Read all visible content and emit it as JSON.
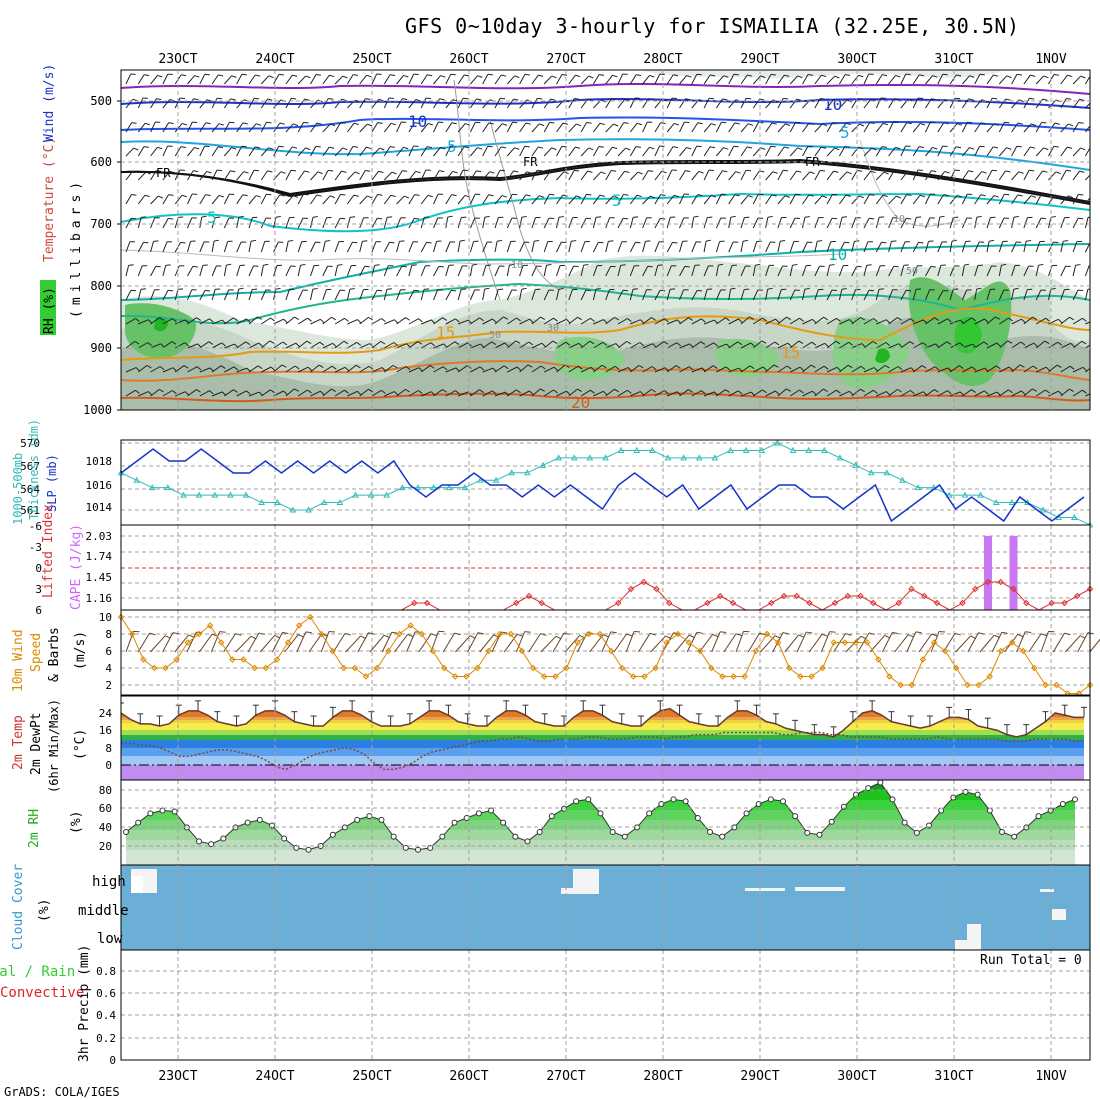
{
  "title": "GFS 0~10day 3-hourly for ISMAILIA (32.25E, 30.5N)",
  "footer": "GrADS: COLA/IGES",
  "dates": [
    "23OCT",
    "24OCT",
    "25OCT",
    "26OCT",
    "27OCT",
    "28OCT",
    "29OCT",
    "30OCT",
    "31OCT",
    "1NOV"
  ],
  "colors": {
    "wind_cmp": "#0000cc",
    "temp": "#cc3333",
    "rh": "#33cc33",
    "cape": "#cc66ff",
    "thickness": "#33bbbb",
    "slp": "#1133cc",
    "wind10": "#dd8800",
    "cloud_bg": "#6baed6",
    "cloud_fill": "#f4f4f4",
    "rain": "#33cc33",
    "conv": "#dd2222"
  },
  "panels": {
    "upper": {
      "labels": {
        "rh": "RH (%)",
        "temperature": "Temperature (°C)",
        "wind": "Wind (m/s)",
        "pressure": "(millibars)"
      },
      "yticks": [
        "500",
        "600",
        "700",
        "800",
        "900",
        "1000"
      ],
      "contour_labels": {
        "fr": "FR",
        "ten": "10",
        "five": "5",
        "fifteen": "15",
        "twenty": "20",
        "thirty": "30",
        "fifty": "50"
      }
    },
    "thickness_slp": {
      "label1": "1000-500mb",
      "label2": "Thickness (dm)",
      "label3": "SLP (mb)",
      "thickness_ticks": [
        "570",
        "567",
        "564",
        "561"
      ],
      "slp_ticks": [
        "1018",
        "1016",
        "1014"
      ]
    },
    "cape_li": {
      "label_li": "Lifted Index",
      "label_cape": "CAPE (J/kg)",
      "li_ticks": [
        "-6",
        "-3",
        "0",
        "3",
        "6"
      ],
      "cape_ticks": [
        "2.03",
        "1.74",
        "1.45",
        "1.16"
      ]
    },
    "wind10": {
      "label1": "10m Wind",
      "label2": "Speed",
      "label3": "& Barbs",
      "units": "(m/s)",
      "ticks": [
        "10",
        "8",
        "6",
        "4",
        "2"
      ]
    },
    "temp2m": {
      "label1": "2m Temp",
      "label2": "2m DewPt",
      "label3": "(6hr Min/Max)",
      "units": "(°C)",
      "ticks": [
        "24",
        "16",
        "8",
        "0"
      ],
      "ticks_minor": [
        "20",
        "12",
        "4"
      ]
    },
    "rh2m": {
      "label": "2m RH",
      "units": "(%)",
      "ticks": [
        "80",
        "60",
        "40",
        "20"
      ]
    },
    "cloud": {
      "label": "Cloud Cover",
      "units": "(%)",
      "levels": [
        "high",
        "middle",
        "low"
      ]
    },
    "precip": {
      "label1": "Total / Rain",
      "label2": "Convective",
      "label3": "3hr Precip (mm)",
      "ticks": [
        "0.8",
        "0.6",
        "0.4",
        "0.2",
        "0"
      ],
      "run_total": "Run Total = 0"
    }
  },
  "chart_data": [
    {
      "type": "line",
      "name": "temp2m",
      "x_unit": "3-hourly steps from 23OCT 00Z (approx. 22 OCT 12Z start)",
      "series": [
        {
          "name": "2m Temp",
          "values": [
            24,
            21,
            19,
            19,
            18,
            19,
            23,
            25,
            25,
            23,
            20,
            19,
            18,
            19,
            23,
            25,
            25,
            23,
            20,
            19,
            18,
            18,
            22,
            25,
            25,
            23,
            20,
            18,
            18,
            18,
            19,
            22,
            25,
            25,
            23,
            20,
            19,
            18,
            18,
            22,
            25,
            25,
            23,
            20,
            19,
            18,
            18,
            22,
            25,
            25,
            23,
            20,
            19,
            18,
            18,
            22,
            25,
            26,
            23,
            20,
            19,
            18,
            18,
            22,
            25,
            25,
            23,
            20,
            19,
            17,
            16,
            15,
            14,
            14,
            13,
            16,
            20,
            24,
            25,
            23,
            20,
            19,
            18,
            17,
            18,
            20,
            22,
            22,
            21,
            18,
            17,
            16,
            14,
            13,
            14,
            17,
            20,
            24,
            23,
            22,
            22
          ]
        },
        {
          "name": "2m DewPt",
          "values": [
            10,
            10,
            9,
            9,
            8,
            6,
            4,
            4,
            5,
            6,
            7,
            7,
            6,
            5,
            4,
            2,
            -1,
            -2,
            0,
            3,
            5,
            6,
            7,
            8,
            7,
            5,
            1,
            -2,
            -2,
            -1,
            1,
            4,
            6,
            7,
            8,
            9,
            10,
            11,
            11,
            12,
            12,
            13,
            12,
            11,
            11,
            12,
            12,
            12,
            13,
            13,
            12,
            12,
            12,
            13,
            13,
            13,
            12,
            13,
            13,
            14,
            14,
            14,
            15,
            15,
            15,
            15,
            15,
            15,
            14,
            14,
            15,
            15,
            15,
            14,
            14,
            13,
            13,
            13,
            13,
            12,
            12,
            12,
            12,
            12,
            13,
            12,
            12,
            12,
            12,
            12,
            12,
            11,
            11,
            11,
            12,
            12,
            12,
            12,
            11,
            11
          ]
        }
      ]
    },
    {
      "type": "line",
      "name": "rh2m",
      "values": [
        35,
        45,
        55,
        58,
        57,
        40,
        25,
        22,
        28,
        40,
        45,
        48,
        42,
        28,
        18,
        16,
        20,
        32,
        40,
        48,
        52,
        48,
        30,
        18,
        16,
        18,
        30,
        45,
        50,
        55,
        58,
        45,
        30,
        25,
        35,
        52,
        60,
        68,
        70,
        55,
        35,
        30,
        40,
        55,
        65,
        70,
        68,
        50,
        35,
        30,
        40,
        55,
        65,
        70,
        68,
        52,
        34,
        32,
        46,
        62,
        75,
        82,
        88,
        70,
        45,
        34,
        42,
        58,
        72,
        78,
        75,
        58,
        35,
        30,
        40,
        52,
        58,
        65,
        70
      ]
    },
    {
      "type": "line",
      "name": "wind10",
      "values": [
        10,
        8,
        5,
        4,
        4,
        5,
        7,
        8,
        9,
        7,
        5,
        5,
        4,
        4,
        5,
        7,
        9,
        10,
        8,
        6,
        4,
        4,
        3,
        4,
        6,
        8,
        9,
        8,
        6,
        4,
        3,
        3,
        4,
        6,
        8,
        8,
        6,
        4,
        3,
        3,
        4,
        7,
        8,
        8,
        6,
        4,
        3,
        3,
        4,
        7,
        8,
        7,
        6,
        4,
        3,
        3,
        3,
        6,
        8,
        7,
        4,
        3,
        3,
        4,
        7,
        7,
        7,
        7,
        5,
        3,
        2,
        2,
        5,
        7,
        6,
        4,
        2,
        2,
        3,
        6,
        7,
        6,
        4,
        2,
        2,
        1,
        1,
        2
      ]
    },
    {
      "type": "line",
      "name": "thickness_slp",
      "series": [
        {
          "name": "Thickness",
          "values": [
            566,
            565,
            564,
            564,
            563,
            563,
            563,
            563,
            563,
            562,
            562,
            561,
            561,
            562,
            562,
            563,
            563,
            563,
            564,
            564,
            564,
            564,
            564,
            565,
            565,
            566,
            566,
            567,
            568,
            568,
            568,
            568,
            569,
            569,
            569,
            568,
            568,
            568,
            568,
            569,
            569,
            569,
            570,
            569,
            569,
            569,
            568,
            567,
            566,
            566,
            565,
            564,
            564,
            563,
            563,
            563,
            562,
            562,
            562,
            561,
            560,
            560,
            559
          ]
        },
        {
          "name": "SLP",
          "values": [
            1017,
            1018,
            1019,
            1018,
            1018,
            1019,
            1018,
            1017,
            1017,
            1018,
            1017,
            1018,
            1017,
            1018,
            1017,
            1018,
            1017,
            1018,
            1016,
            1015,
            1016,
            1016,
            1017,
            1016,
            1016,
            1015,
            1016,
            1015,
            1016,
            1015,
            1014,
            1016,
            1017,
            1016,
            1015,
            1016,
            1014,
            1015,
            1016,
            1014,
            1015,
            1016,
            1016,
            1015,
            1015,
            1014,
            1015,
            1016,
            1013,
            1014,
            1015,
            1016,
            1014,
            1015,
            1014,
            1013,
            1015,
            1014,
            1013,
            1014,
            1015
          ]
        }
      ]
    },
    {
      "type": "line",
      "name": "cape_li",
      "series": [
        {
          "name": "Lifted Index",
          "values": [
            6,
            6,
            6,
            6,
            6,
            6,
            6,
            6,
            6,
            6,
            6,
            6,
            6,
            6,
            6,
            6,
            6,
            6,
            6,
            6,
            6,
            6,
            6,
            5,
            5,
            6,
            6,
            6,
            6,
            6,
            6,
            5,
            4,
            5,
            6,
            6,
            6,
            6,
            6,
            5,
            3,
            2,
            3,
            5,
            6,
            6,
            5,
            4,
            5,
            6,
            6,
            5,
            4,
            4,
            5,
            6,
            5,
            4,
            4,
            5,
            6,
            5,
            3,
            4,
            5,
            6,
            5,
            3,
            2,
            2,
            3,
            5,
            6,
            5,
            5,
            4,
            3
          ]
        },
        {
          "name": "CAPE",
          "values": [
            0,
            0,
            0,
            0,
            0,
            0,
            0,
            0,
            0,
            0,
            0,
            0,
            0,
            0,
            0,
            0,
            0,
            0,
            0,
            0,
            0,
            0,
            0,
            0,
            0,
            0,
            0,
            0,
            0,
            0,
            0,
            0,
            0,
            0,
            0,
            0,
            0,
            0,
            0,
            0,
            0,
            0,
            0,
            0,
            0,
            0,
            0,
            0,
            0,
            0,
            0,
            0,
            0,
            0,
            0,
            0,
            0,
            0,
            0,
            0,
            0,
            0,
            0,
            0,
            0,
            0,
            0,
            0,
            2.03,
            0,
            2.03,
            0,
            0,
            0,
            0,
            0,
            0
          ]
        }
      ]
    },
    {
      "type": "bar",
      "name": "precip",
      "values": [
        0,
        0,
        0,
        0,
        0,
        0,
        0,
        0,
        0,
        0
      ]
    }
  ]
}
